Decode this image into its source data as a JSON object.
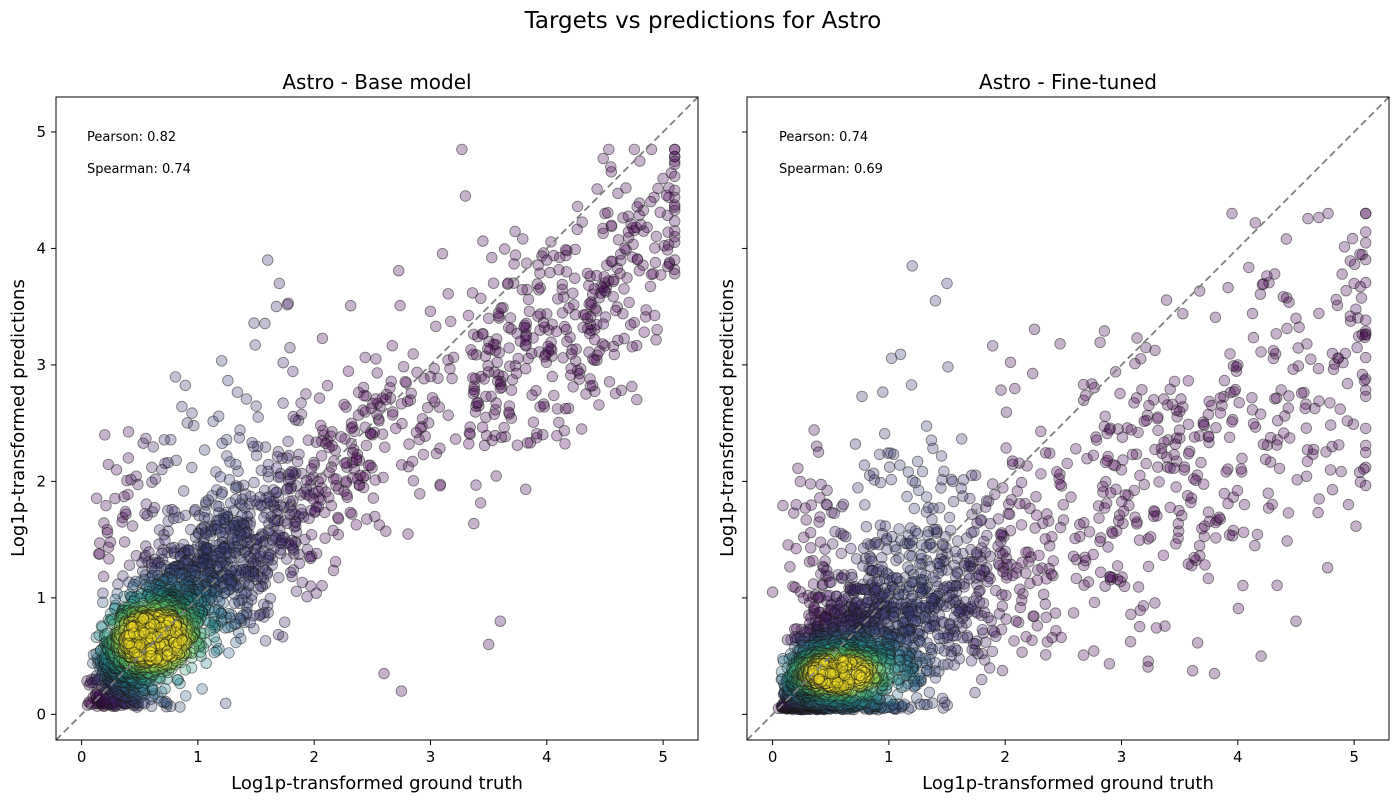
{
  "figure": {
    "suptitle": "Targets vs predictions for Astro"
  },
  "colors": {
    "point_low": "#440154",
    "point_mid": "#31688e",
    "point_teal": "#21918c",
    "point_green": "#5ec962",
    "point_high": "#fde725",
    "diagonal": "#808080"
  },
  "chart_data": [
    {
      "type": "scatter",
      "title": "Astro - Base model",
      "xlabel": "Log1p-transformed ground truth",
      "ylabel": "Log1p-transformed predictions",
      "xlim": [
        -0.22,
        5.3
      ],
      "ylim": [
        -0.22,
        5.3
      ],
      "xticks": [
        0,
        1,
        2,
        3,
        4,
        5
      ],
      "yticks": [
        0,
        1,
        2,
        3,
        4,
        5
      ],
      "reference_line": "y = x (dashed)",
      "color_encoding": "point density (viridis)",
      "density_peak": [
        0.6,
        0.65
      ],
      "pearson_label": "Pearson: 0.82",
      "spearman_label": "Spearman: 0.74",
      "points_approx": [
        [
          0.05,
          0.08
        ],
        [
          0.1,
          0.15
        ],
        [
          0.2,
          0.3
        ],
        [
          0.3,
          0.45
        ],
        [
          0.4,
          0.5
        ],
        [
          0.5,
          0.6
        ],
        [
          0.6,
          0.65
        ],
        [
          0.7,
          0.7
        ],
        [
          0.8,
          0.8
        ],
        [
          1.0,
          1.1
        ],
        [
          1.2,
          1.3
        ],
        [
          1.5,
          1.5
        ],
        [
          1.8,
          1.8
        ],
        [
          2.0,
          1.9
        ],
        [
          2.5,
          2.4
        ],
        [
          3.0,
          2.9
        ],
        [
          3.5,
          3.4
        ],
        [
          4.0,
          3.9
        ],
        [
          4.5,
          4.3
        ],
        [
          5.0,
          4.6
        ],
        [
          0.3,
          2.1
        ],
        [
          0.2,
          2.4
        ],
        [
          1.6,
          3.9
        ],
        [
          1.7,
          3.7
        ],
        [
          3.3,
          4.45
        ],
        [
          4.55,
          4.7
        ],
        [
          4.9,
          4.85
        ],
        [
          5.05,
          4.52
        ],
        [
          2.75,
          0.2
        ],
        [
          3.5,
          0.6
        ],
        [
          3.6,
          0.8
        ],
        [
          2.6,
          0.35
        ],
        [
          4.8,
          4.75
        ],
        [
          4.3,
          2.45
        ]
      ]
    },
    {
      "type": "scatter",
      "title": "Astro - Fine-tuned",
      "xlabel": "Log1p-transformed ground truth",
      "ylabel": "Log1p-transformed predictions",
      "xlim": [
        -0.22,
        5.3
      ],
      "ylim": [
        -0.22,
        5.3
      ],
      "xticks": [
        0,
        1,
        2,
        3,
        4,
        5
      ],
      "yticks": [
        0,
        1,
        2,
        3,
        4,
        5
      ],
      "reference_line": "y = x (dashed)",
      "color_encoding": "point density (viridis)",
      "density_peak": [
        0.55,
        0.35
      ],
      "pearson_label": "Pearson: 0.74",
      "spearman_label": "Spearman: 0.69",
      "points_approx": [
        [
          0.05,
          0.05
        ],
        [
          0.1,
          0.1
        ],
        [
          0.2,
          0.2
        ],
        [
          0.4,
          0.3
        ],
        [
          0.5,
          0.35
        ],
        [
          0.6,
          0.4
        ],
        [
          0.8,
          0.5
        ],
        [
          1.0,
          0.7
        ],
        [
          1.2,
          0.9
        ],
        [
          1.5,
          1.1
        ],
        [
          2.0,
          1.4
        ],
        [
          2.5,
          1.8
        ],
        [
          3.0,
          2.1
        ],
        [
          3.5,
          2.6
        ],
        [
          4.0,
          3.0
        ],
        [
          4.5,
          3.4
        ],
        [
          5.0,
          3.7
        ],
        [
          1.2,
          3.85
        ],
        [
          1.4,
          3.55
        ],
        [
          1.5,
          3.7
        ],
        [
          3.95,
          4.3
        ],
        [
          4.15,
          4.22
        ],
        [
          4.7,
          1.85
        ],
        [
          4.5,
          0.8
        ],
        [
          5.05,
          3.95
        ],
        [
          4.2,
          0.5
        ],
        [
          3.8,
          0.35
        ],
        [
          0.0,
          1.05
        ]
      ]
    }
  ]
}
